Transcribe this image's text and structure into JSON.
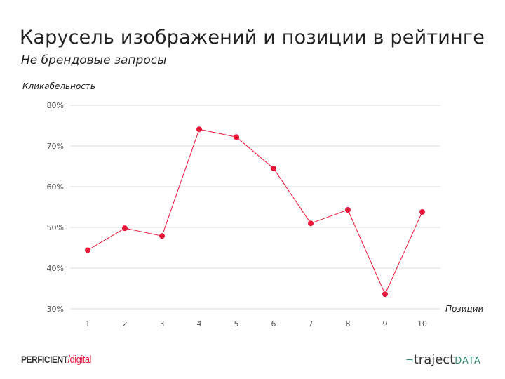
{
  "header": {
    "title": "Карусель изображений и позиции в рейтинге",
    "subtitle": "Не брендовые запросы"
  },
  "logos": {
    "left": "PERFICIENT digital",
    "right": "trajectDATA"
  },
  "chart_data": {
    "type": "line",
    "title": "Карусель изображений и позиции в рейтинге",
    "subtitle": "Не брендовые запросы",
    "xlabel": "Позиции",
    "ylabel": "Кликабельность",
    "categories": [
      "1",
      "2",
      "3",
      "4",
      "5",
      "6",
      "7",
      "8",
      "9",
      "10"
    ],
    "values": [
      44.4,
      49.8,
      47.9,
      74.1,
      72.2,
      64.5,
      51.0,
      54.3,
      33.6,
      53.8
    ],
    "ylim": [
      30,
      80
    ],
    "yticks": [
      30,
      40,
      50,
      60,
      70,
      80
    ],
    "ytick_labels": [
      "30%",
      "40%",
      "50%",
      "60%",
      "70%",
      "80%"
    ],
    "grid": true,
    "legend": "none",
    "line_color": "#e8173a",
    "grid_color": "#dddddd"
  }
}
